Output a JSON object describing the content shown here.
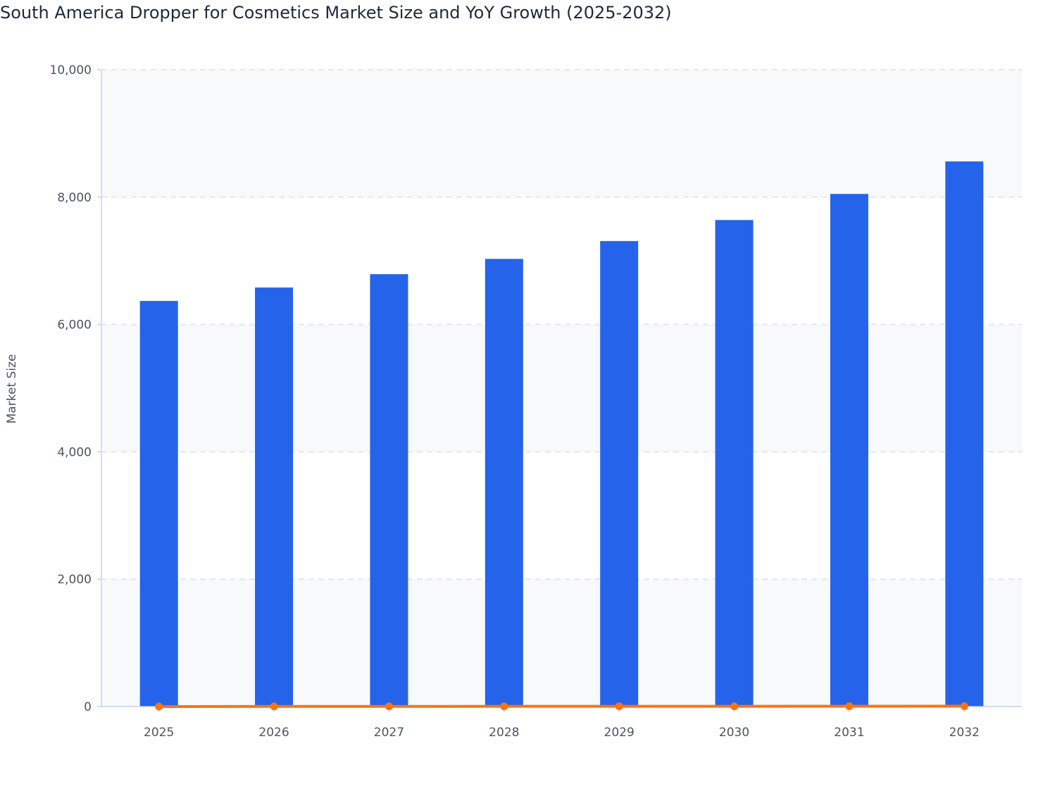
{
  "chart_data": {
    "type": "bar",
    "title": "South America Dropper for Cosmetics Market Size and YoY Growth (2025-2032)",
    "xlabel": "",
    "ylabel": "Market Size",
    "ylim": [
      0,
      10000
    ],
    "yticks": [
      0,
      2000,
      4000,
      6000,
      8000,
      10000
    ],
    "ytick_labels": [
      "0",
      "2,000",
      "4,000",
      "6,000",
      "8,000",
      "10,000"
    ],
    "categories": [
      "2025",
      "2026",
      "2027",
      "2028",
      "2029",
      "2030",
      "2031",
      "2032"
    ],
    "grid": true,
    "series": [
      {
        "type": "bar",
        "color": "#2563eb",
        "values": [
          6370,
          6580,
          6790,
          7030,
          7310,
          7640,
          8050,
          8560
        ]
      },
      {
        "type": "line",
        "color": "#f97316",
        "values": [
          0,
          3.3,
          3.2,
          3.5,
          4.0,
          4.5,
          5.4,
          6.3
        ]
      }
    ]
  }
}
